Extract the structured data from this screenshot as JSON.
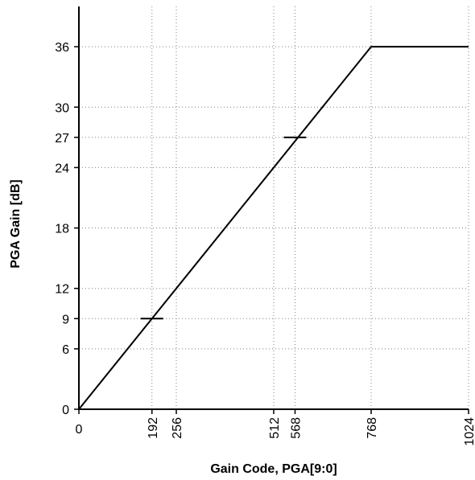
{
  "chart_data": {
    "type": "line",
    "title": "",
    "xlabel": "Gain Code, PGA[9:0]",
    "ylabel": "PGA Gain [dB]",
    "xlim": [
      0,
      1024
    ],
    "ylim": [
      0,
      40
    ],
    "xticks": [
      0,
      192,
      256,
      512,
      568,
      768,
      1024
    ],
    "yticks": [
      0,
      6,
      9,
      12,
      18,
      24,
      27,
      30,
      36
    ],
    "grid": true,
    "series": [
      {
        "x": [
          0,
          768,
          1024
        ],
        "y": [
          0,
          36,
          36
        ],
        "color": "#000000"
      }
    ],
    "markers": [
      {
        "x": 192,
        "y": 9
      },
      {
        "x": 568,
        "y": 27
      }
    ]
  }
}
